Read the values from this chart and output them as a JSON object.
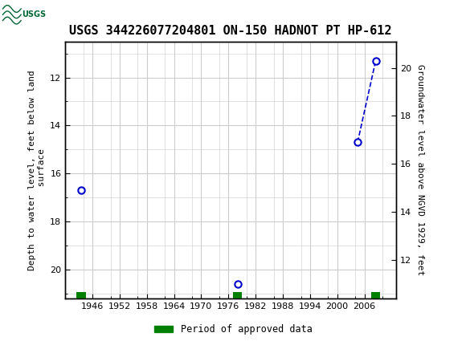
{
  "title": "USGS 344226077204801 ON-150 HADNOT PT HP-612",
  "ylabel_left": "Depth to water level, feet below land\n surface",
  "ylabel_right": "Groundwater level above NGVD 1929, feet",
  "xlabel": "",
  "ylim_left": [
    10.5,
    21.2
  ],
  "xlim": [
    1940,
    2013
  ],
  "yticks_left": [
    12.0,
    14.0,
    16.0,
    18.0,
    20.0
  ],
  "yticks_right": [
    12.0,
    14.0,
    16.0,
    18.0,
    20.0
  ],
  "xticks": [
    1946,
    1952,
    1958,
    1964,
    1970,
    1976,
    1982,
    1988,
    1994,
    2000,
    2006
  ],
  "data_points": [
    {
      "year": 1943.5,
      "depth": 16.7
    },
    {
      "year": 1978.0,
      "depth": 20.6
    },
    {
      "year": 2004.5,
      "depth": 14.7
    },
    {
      "year": 2008.5,
      "depth": 11.3
    }
  ],
  "green_bars": [
    {
      "year": 1943.5
    },
    {
      "year": 1978.0
    },
    {
      "year": 2008.5
    }
  ],
  "dashed_line": [
    {
      "year": 2004.5,
      "depth": 14.7
    },
    {
      "year": 2008.5,
      "depth": 11.3
    }
  ],
  "point_color": "#0000cc",
  "dashed_line_color": "#0000cc",
  "green_color": "#008000",
  "header_color": "#006633",
  "legend_label": "Period of approved data",
  "background_color": "#ffffff",
  "plot_bg_color": "#ffffff",
  "grid_color": "#cccccc",
  "title_fontsize": 11,
  "axis_label_fontsize": 8,
  "tick_fontsize": 8
}
